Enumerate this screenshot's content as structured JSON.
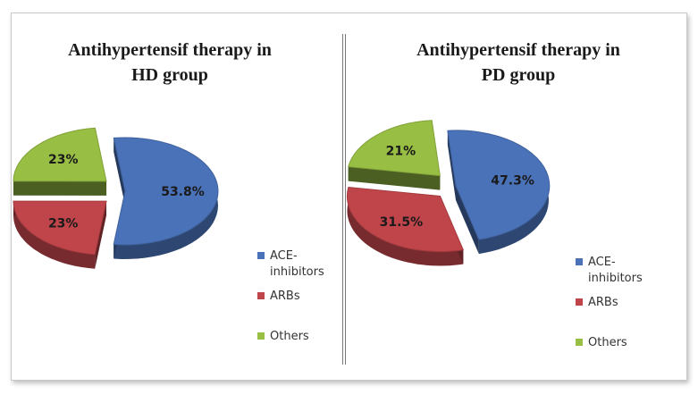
{
  "chart_data": [
    {
      "type": "pie",
      "title_lines": [
        "Antihypertensif therapy in",
        "HD group"
      ],
      "slices": [
        {
          "label": "ACE-inhibitors",
          "legend_lines": [
            "ACE-",
            "inhibitors"
          ],
          "value": 53.8,
          "display": "53.8%",
          "color": "#4a72b8"
        },
        {
          "label": "ARBs",
          "legend_lines": [
            "ARBs"
          ],
          "value": 23,
          "display": "23%",
          "color": "#c0454a"
        },
        {
          "label": "Others",
          "legend_lines": [
            "Others"
          ],
          "value": 23,
          "display": "23%",
          "color": "#98be44"
        }
      ],
      "legend_position": "bottom-right"
    },
    {
      "type": "pie",
      "title_lines": [
        "Antihypertensif therapy in",
        "PD group"
      ],
      "slices": [
        {
          "label": "ACE-inhibitors",
          "legend_lines": [
            "ACE-",
            "inhibitors"
          ],
          "value": 47.3,
          "display": "47.3%",
          "color": "#4a72b8"
        },
        {
          "label": "ARBs",
          "legend_lines": [
            "ARBs"
          ],
          "value": 31.5,
          "display": "31.5%",
          "color": "#c0454a"
        },
        {
          "label": "Others",
          "legend_lines": [
            "Others"
          ],
          "value": 21,
          "display": "21%",
          "color": "#98be44"
        }
      ],
      "legend_position": "bottom-right"
    }
  ]
}
